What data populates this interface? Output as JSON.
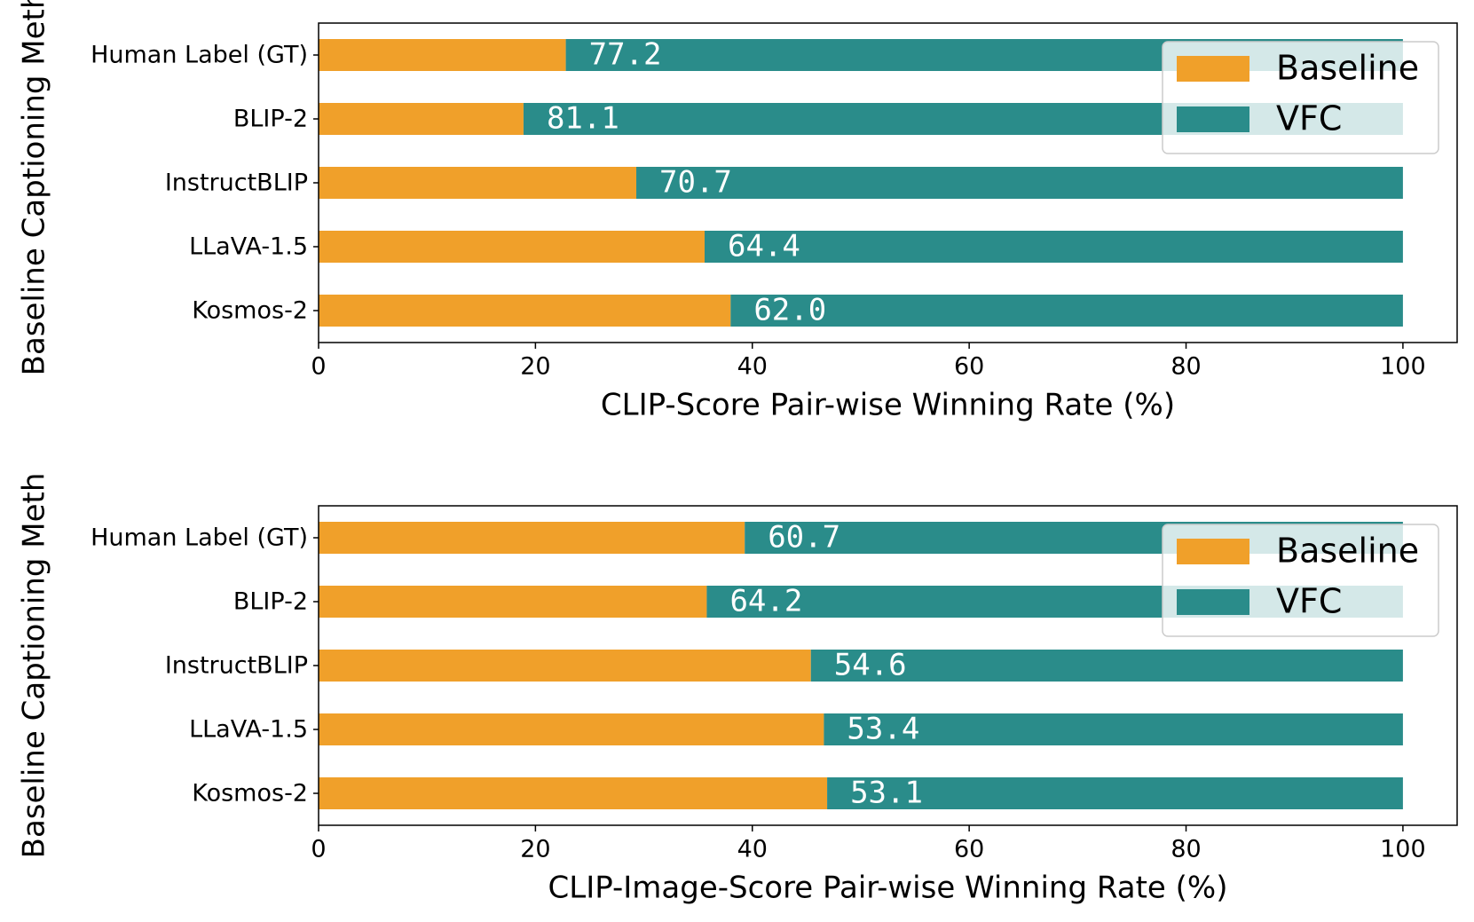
{
  "chart_data": [
    {
      "type": "stacked-bar-horizontal",
      "ylabel": "Baseline Captioning Meth",
      "xlabel": "CLIP-Score Pair-wise Winning Rate (%)",
      "categories": [
        "Human Label (GT)",
        "BLIP-2",
        "InstructBLIP",
        "LLaVA-1.5",
        "Kosmos-2"
      ],
      "series": [
        {
          "name": "Baseline",
          "color": "#f0a02a",
          "values": [
            22.8,
            18.9,
            29.3,
            35.6,
            38.0
          ]
        },
        {
          "name": "VFC",
          "color": "#2a8c8a",
          "values": [
            77.2,
            81.1,
            70.7,
            64.4,
            62.0
          ],
          "value_labels": [
            "77.2",
            "81.1",
            "70.7",
            "64.4",
            "62.0"
          ]
        }
      ],
      "xlim": [
        0,
        105
      ],
      "xticks": [
        0,
        20,
        40,
        60,
        80,
        100
      ],
      "legend": "upper right",
      "grid": false
    },
    {
      "type": "stacked-bar-horizontal",
      "ylabel": "Baseline Captioning Meth",
      "xlabel": "CLIP-Image-Score Pair-wise Winning Rate (%)",
      "categories": [
        "Human Label (GT)",
        "BLIP-2",
        "InstructBLIP",
        "LLaVA-1.5",
        "Kosmos-2"
      ],
      "series": [
        {
          "name": "Baseline",
          "color": "#f0a02a",
          "values": [
            39.3,
            35.8,
            45.4,
            46.6,
            46.9
          ]
        },
        {
          "name": "VFC",
          "color": "#2a8c8a",
          "values": [
            60.7,
            64.2,
            54.6,
            53.4,
            53.1
          ],
          "value_labels": [
            "60.7",
            "64.2",
            "54.6",
            "53.4",
            "53.1"
          ]
        }
      ],
      "xlim": [
        0,
        105
      ],
      "xticks": [
        0,
        20,
        40,
        60,
        80,
        100
      ],
      "legend": "upper right",
      "grid": false
    }
  ]
}
